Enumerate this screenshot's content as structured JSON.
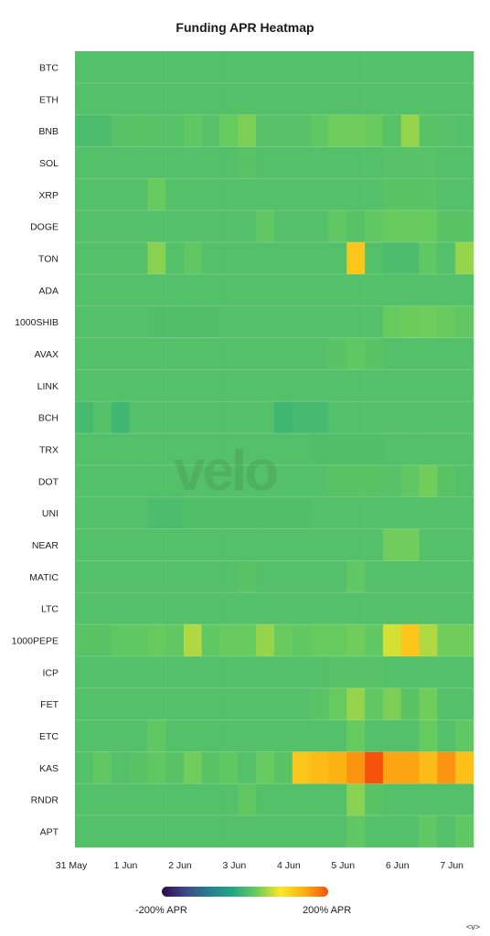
{
  "title": "Funding APR Heatmap",
  "watermark": "velo",
  "colorbar": {
    "min_label": "-200% APR",
    "max_label": "200% APR",
    "colors": [
      "#2a0b4d",
      "#3b4a8c",
      "#277f8e",
      "#22a884",
      "#6ccc5c",
      "#fde725",
      "#fcae12",
      "#f7520c"
    ]
  },
  "nav_glyph": "<v>",
  "chart_data": {
    "type": "heatmap",
    "title": "Funding APR Heatmap",
    "value_range": [
      -200,
      200
    ],
    "unit": "% APR",
    "rows": [
      "BTC",
      "ETH",
      "BNB",
      "SOL",
      "XRP",
      "DOGE",
      "TON",
      "ADA",
      "1000SHIB",
      "AVAX",
      "LINK",
      "BCH",
      "TRX",
      "DOT",
      "UNI",
      "NEAR",
      "MATIC",
      "LTC",
      "1000PEPE",
      "ICP",
      "FET",
      "ETC",
      "KAS",
      "RNDR",
      "APT"
    ],
    "x_ticks": [
      "31 May",
      "1 Jun",
      "2 Jun",
      "3 Jun",
      "4 Jun",
      "5 Jun",
      "6 Jun",
      "7 Jun"
    ],
    "columns_per_day": 3,
    "values": [
      [
        10,
        10,
        10,
        10,
        10,
        10,
        10,
        10,
        10,
        10,
        10,
        10,
        10,
        10,
        10,
        10,
        10,
        10,
        10,
        10,
        10,
        10
      ],
      [
        10,
        10,
        10,
        10,
        10,
        10,
        10,
        10,
        10,
        10,
        10,
        10,
        10,
        10,
        10,
        10,
        10,
        10,
        10,
        10,
        10,
        10
      ],
      [
        5,
        5,
        12,
        15,
        12,
        12,
        20,
        12,
        25,
        35,
        12,
        12,
        12,
        20,
        30,
        30,
        25,
        12,
        45,
        15,
        12,
        10
      ],
      [
        10,
        10,
        10,
        10,
        10,
        10,
        10,
        10,
        10,
        15,
        10,
        10,
        10,
        10,
        10,
        10,
        10,
        12,
        12,
        12,
        10,
        10
      ],
      [
        10,
        10,
        10,
        10,
        25,
        10,
        10,
        10,
        10,
        10,
        10,
        10,
        10,
        10,
        10,
        10,
        10,
        15,
        15,
        15,
        10,
        10
      ],
      [
        10,
        10,
        10,
        10,
        10,
        10,
        10,
        10,
        10,
        10,
        20,
        10,
        10,
        10,
        20,
        12,
        20,
        25,
        25,
        25,
        15,
        15
      ],
      [
        10,
        10,
        10,
        10,
        40,
        10,
        20,
        10,
        10,
        10,
        10,
        10,
        10,
        10,
        10,
        120,
        10,
        5,
        5,
        20,
        10,
        45
      ],
      [
        10,
        10,
        10,
        10,
        10,
        10,
        10,
        10,
        10,
        10,
        10,
        10,
        10,
        10,
        10,
        10,
        10,
        10,
        10,
        10,
        10,
        10
      ],
      [
        10,
        10,
        10,
        10,
        8,
        8,
        8,
        8,
        10,
        10,
        10,
        10,
        10,
        10,
        10,
        10,
        10,
        25,
        28,
        30,
        25,
        20
      ],
      [
        10,
        10,
        10,
        10,
        10,
        10,
        10,
        10,
        10,
        10,
        10,
        10,
        10,
        10,
        15,
        20,
        15,
        10,
        10,
        10,
        10,
        10
      ],
      [
        10,
        10,
        10,
        10,
        10,
        10,
        10,
        10,
        10,
        10,
        10,
        10,
        10,
        10,
        10,
        10,
        10,
        10,
        10,
        10,
        10,
        10
      ],
      [
        0,
        10,
        -5,
        10,
        10,
        10,
        10,
        10,
        10,
        10,
        10,
        -5,
        0,
        0,
        10,
        10,
        10,
        10,
        10,
        10,
        10,
        10
      ],
      [
        10,
        10,
        10,
        10,
        10,
        10,
        10,
        10,
        10,
        10,
        10,
        10,
        10,
        8,
        8,
        8,
        8,
        10,
        10,
        10,
        10,
        10
      ],
      [
        10,
        10,
        10,
        10,
        10,
        10,
        10,
        10,
        10,
        10,
        10,
        10,
        10,
        10,
        15,
        15,
        15,
        12,
        20,
        30,
        15,
        10
      ],
      [
        10,
        10,
        10,
        10,
        5,
        5,
        8,
        8,
        8,
        8,
        8,
        8,
        8,
        10,
        10,
        10,
        10,
        10,
        10,
        10,
        10,
        10
      ],
      [
        10,
        10,
        10,
        10,
        10,
        10,
        10,
        10,
        10,
        10,
        10,
        10,
        10,
        10,
        10,
        10,
        10,
        30,
        30,
        10,
        10,
        10
      ],
      [
        10,
        10,
        10,
        10,
        10,
        10,
        10,
        10,
        10,
        15,
        10,
        10,
        10,
        10,
        10,
        20,
        10,
        10,
        10,
        10,
        10,
        10
      ],
      [
        10,
        10,
        10,
        10,
        10,
        10,
        10,
        10,
        10,
        10,
        10,
        10,
        10,
        10,
        10,
        10,
        10,
        10,
        10,
        10,
        10,
        10
      ],
      [
        15,
        15,
        20,
        20,
        25,
        20,
        55,
        20,
        25,
        25,
        45,
        25,
        20,
        25,
        25,
        30,
        20,
        70,
        120,
        55,
        30,
        30
      ],
      [
        10,
        10,
        10,
        10,
        10,
        10,
        10,
        10,
        10,
        10,
        10,
        10,
        10,
        10,
        12,
        12,
        12,
        10,
        10,
        10,
        10,
        10
      ],
      [
        10,
        10,
        10,
        10,
        10,
        10,
        10,
        10,
        10,
        10,
        10,
        10,
        10,
        15,
        25,
        45,
        20,
        35,
        15,
        30,
        10,
        10
      ],
      [
        10,
        10,
        10,
        10,
        20,
        10,
        10,
        10,
        10,
        10,
        10,
        10,
        10,
        10,
        10,
        25,
        10,
        10,
        10,
        25,
        10,
        20
      ],
      [
        10,
        20,
        10,
        15,
        20,
        15,
        30,
        15,
        20,
        10,
        25,
        15,
        120,
        130,
        140,
        160,
        200,
        150,
        150,
        130,
        160,
        125
      ],
      [
        10,
        10,
        10,
        10,
        10,
        10,
        10,
        10,
        10,
        20,
        10,
        10,
        10,
        10,
        10,
        40,
        15,
        10,
        10,
        10,
        10,
        10
      ],
      [
        10,
        10,
        10,
        10,
        10,
        10,
        10,
        10,
        10,
        10,
        10,
        10,
        10,
        10,
        10,
        20,
        10,
        10,
        10,
        20,
        10,
        20
      ]
    ]
  }
}
